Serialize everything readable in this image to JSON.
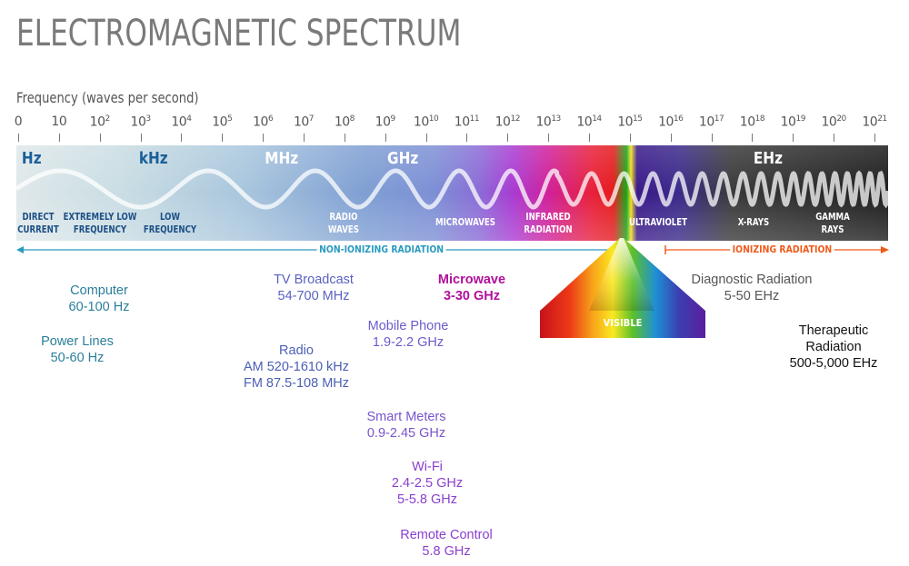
{
  "title": "ELECTROMAGNETIC SPECTRUM",
  "frequency_label": "Frequency (waves per second)",
  "ticks": [
    {
      "base": "0",
      "exp": ""
    },
    {
      "base": "10",
      "exp": ""
    },
    {
      "base": "10",
      "exp": "2"
    },
    {
      "base": "10",
      "exp": "3"
    },
    {
      "base": "10",
      "exp": "4"
    },
    {
      "base": "10",
      "exp": "5"
    },
    {
      "base": "10",
      "exp": "6"
    },
    {
      "base": "10",
      "exp": "7"
    },
    {
      "base": "10",
      "exp": "8"
    },
    {
      "base": "10",
      "exp": "9"
    },
    {
      "base": "10",
      "exp": "10"
    },
    {
      "base": "10",
      "exp": "11"
    },
    {
      "base": "10",
      "exp": "12"
    },
    {
      "base": "10",
      "exp": "13"
    },
    {
      "base": "10",
      "exp": "14"
    },
    {
      "base": "10",
      "exp": "15"
    },
    {
      "base": "10",
      "exp": "16"
    },
    {
      "base": "10",
      "exp": "17"
    },
    {
      "base": "10",
      "exp": "18"
    },
    {
      "base": "10",
      "exp": "19"
    },
    {
      "base": "10",
      "exp": "20"
    },
    {
      "base": "10",
      "exp": "21"
    }
  ],
  "units": {
    "hz": "Hz",
    "khz": "kHz",
    "mhz": "MHz",
    "ghz": "GHz",
    "ehz": "EHz"
  },
  "regions": {
    "direct_current": [
      "DIRECT",
      "CURRENT"
    ],
    "extremely_low": [
      "EXTREMELY LOW",
      "FREQUENCY"
    ],
    "low": [
      "LOW",
      "FREQUENCY"
    ],
    "radio": [
      "RADIO",
      "WAVES"
    ],
    "microwaves": [
      "MICROWAVES"
    ],
    "infrared": [
      "INFRARED",
      "RADIATION"
    ],
    "ultraviolet": [
      "ULTRAVIOLET"
    ],
    "xrays": [
      "X-RAYS"
    ],
    "gamma": [
      "GAMMA",
      "RAYS"
    ]
  },
  "non_ionizing": "NON-IONIZING RADIATION",
  "ionizing": "IONIZING RADIATION",
  "visible": "VISIBLE",
  "applications": {
    "computer": {
      "name": "Computer",
      "value": "60-100 Hz"
    },
    "power_lines": {
      "name": "Power Lines",
      "value": "50-60 Hz"
    },
    "tv_broadcast": {
      "name": "TV Broadcast",
      "value": "54-700 MHz"
    },
    "radio": {
      "name": "Radio",
      "value": "AM 520-1610 kHz",
      "value2": "FM 87.5-108 MHz"
    },
    "mobile_phone": {
      "name": "Mobile Phone",
      "value": "1.9-2.2 GHz"
    },
    "smart_meters": {
      "name": "Smart Meters",
      "value": "0.9-2.45 GHz"
    },
    "wifi": {
      "name": "Wi-Fi",
      "value": "2.4-2.5 GHz",
      "value2": "5-5.8 GHz"
    },
    "remote_control": {
      "name": "Remote Control",
      "value": "5.8 GHz"
    },
    "microwave": {
      "name": "Microwave",
      "value": "3-30 GHz"
    },
    "diagnostic": {
      "name": "Diagnostic Radiation",
      "value": "5-50 EHz"
    },
    "therapeutic": {
      "name": "Therapeutic",
      "name2": "Radiation",
      "value": "500-5,000 EHz"
    }
  },
  "colors": {
    "title": "#7a7a7a",
    "non_ionizing": "#2b9bbf",
    "ionizing": "#f05a1a",
    "teal_text": "#2a7f9a",
    "blue_text": "#4b5fb5",
    "purple_text": "#8a3fd0",
    "magenta_text": "#b0109a"
  }
}
